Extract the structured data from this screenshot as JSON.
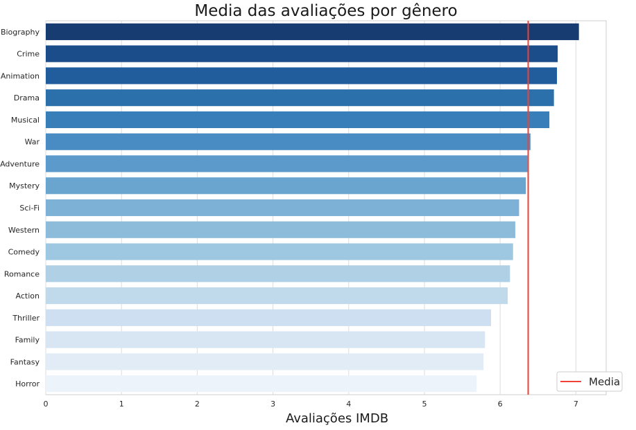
{
  "chart_data": {
    "type": "bar",
    "orientation": "horizontal",
    "title": "Media das avaliações por gênero",
    "xlabel": "Avaliações IMDB",
    "ylabel": "",
    "xlim": [
      0,
      7.4
    ],
    "x_ticks": [
      "0",
      "1",
      "2",
      "3",
      "4",
      "5",
      "6",
      "7"
    ],
    "grid": "vertical",
    "categories": [
      "Biography",
      "Crime",
      "Animation",
      "Drama",
      "Musical",
      "War",
      "Adventure",
      "Mystery",
      "Sci-Fi",
      "Western",
      "Comedy",
      "Romance",
      "Action",
      "Thriller",
      "Family",
      "Fantasy",
      "Horror"
    ],
    "values": [
      7.04,
      6.76,
      6.75,
      6.71,
      6.65,
      6.4,
      6.36,
      6.34,
      6.25,
      6.2,
      6.17,
      6.13,
      6.1,
      5.88,
      5.8,
      5.78,
      5.69
    ],
    "colors": [
      "#163c71",
      "#1b4d8a",
      "#215d9c",
      "#2b6fab",
      "#387eb9",
      "#498cc3",
      "#5b9acb",
      "#6aa5d0",
      "#7db1d5",
      "#8dbcdb",
      "#9ec8e1",
      "#afd0e5",
      "#c0d9eb",
      "#cddff1",
      "#d8e6f4",
      "#e2ecf7",
      "#edf3fa"
    ],
    "reference_line": {
      "label": "Media",
      "value": 6.37,
      "color": "#ef4136"
    },
    "legend": {
      "position": "bottom-right",
      "entries": [
        "Media"
      ]
    }
  }
}
